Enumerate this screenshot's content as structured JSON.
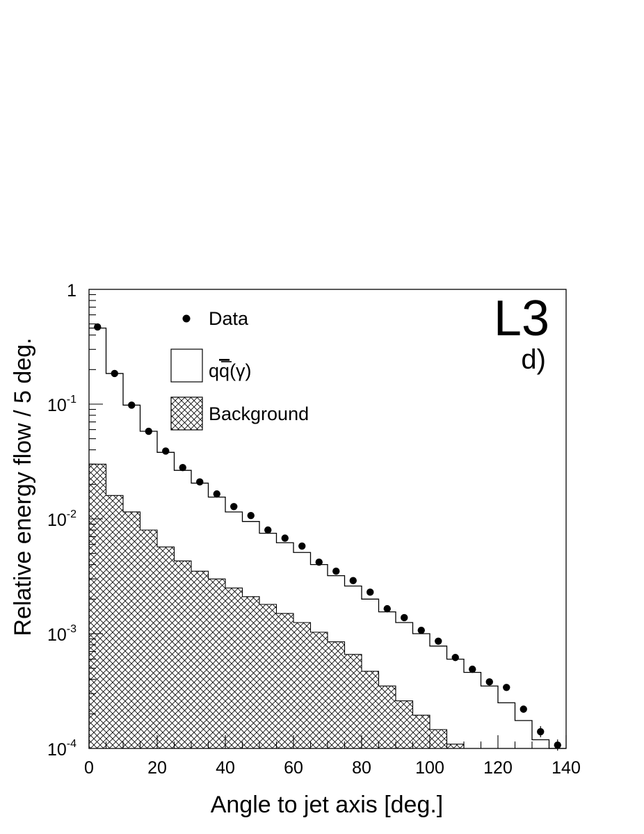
{
  "chart_data": {
    "type": "histogram",
    "xlabel": "Angle to jet axis [deg.]",
    "ylabel": "Relative energy flow / 5 deg.",
    "xlim": [
      0,
      140
    ],
    "ylim": [
      0.0001,
      1
    ],
    "yscale": "log",
    "x_ticks": [
      0,
      20,
      40,
      60,
      80,
      100,
      120,
      140
    ],
    "y_ticks": [
      {
        "value": 1,
        "base": "1",
        "exp": ""
      },
      {
        "value": 0.1,
        "base": "10",
        "exp": "-1"
      },
      {
        "value": 0.01,
        "base": "10",
        "exp": "-2"
      },
      {
        "value": 0.001,
        "base": "10",
        "exp": "-3"
      },
      {
        "value": 0.0001,
        "base": "10",
        "exp": "-4"
      }
    ],
    "bin_edges": [
      0,
      5,
      10,
      15,
      20,
      25,
      30,
      35,
      40,
      45,
      50,
      55,
      60,
      65,
      70,
      75,
      80,
      85,
      90,
      95,
      100,
      105,
      110,
      115,
      120,
      125,
      130,
      135,
      140
    ],
    "experiment_label": "L3",
    "panel_label": "d)",
    "legend": {
      "placement": "top-left",
      "data_label": "Data",
      "mc_label": "qq̄(γ)",
      "mc_q1": "q",
      "mc_q2": "q",
      "mc_gamma": "(γ)",
      "background_label": "Background"
    },
    "series": [
      {
        "name": "Data",
        "style": "points",
        "x": [
          2.5,
          7.5,
          12.5,
          17.5,
          22.5,
          27.5,
          32.5,
          37.5,
          42.5,
          47.5,
          52.5,
          57.5,
          62.5,
          67.5,
          72.5,
          77.5,
          82.5,
          87.5,
          92.5,
          97.5,
          102.5,
          107.5,
          112.5,
          117.5,
          122.5,
          127.5,
          132.5,
          137.5
        ],
        "y": [
          0.47,
          0.185,
          0.098,
          0.058,
          0.039,
          0.028,
          0.021,
          0.0165,
          0.0128,
          0.0107,
          0.008,
          0.0068,
          0.0058,
          0.0042,
          0.0035,
          0.0029,
          0.0023,
          0.00165,
          0.00138,
          0.00107,
          0.00086,
          0.00062,
          0.00049,
          0.00038,
          0.00034,
          0.00022,
          0.00014,
          0.000107
        ]
      },
      {
        "name": "qq̄(γ)",
        "style": "step",
        "y": [
          0.46,
          0.185,
          0.098,
          0.058,
          0.038,
          0.0265,
          0.0205,
          0.0155,
          0.0115,
          0.0095,
          0.0075,
          0.0062,
          0.0051,
          0.004,
          0.0032,
          0.0026,
          0.002,
          0.00155,
          0.00125,
          0.001,
          0.00078,
          0.0006,
          0.00046,
          0.00035,
          0.00025,
          0.000175,
          0.000119,
          9.9e-05
        ]
      },
      {
        "name": "Background",
        "style": "hatched",
        "y": [
          0.03,
          0.016,
          0.0115,
          0.008,
          0.0057,
          0.0043,
          0.0035,
          0.003,
          0.0025,
          0.0021,
          0.0018,
          0.0015,
          0.00125,
          0.00103,
          0.00085,
          0.00066,
          0.00047,
          0.00035,
          0.00026,
          0.000195,
          0.000146,
          0.000109,
          0.0001,
          0.0001,
          0.0001,
          0.0001,
          0.0001,
          0.0001
        ]
      }
    ]
  }
}
